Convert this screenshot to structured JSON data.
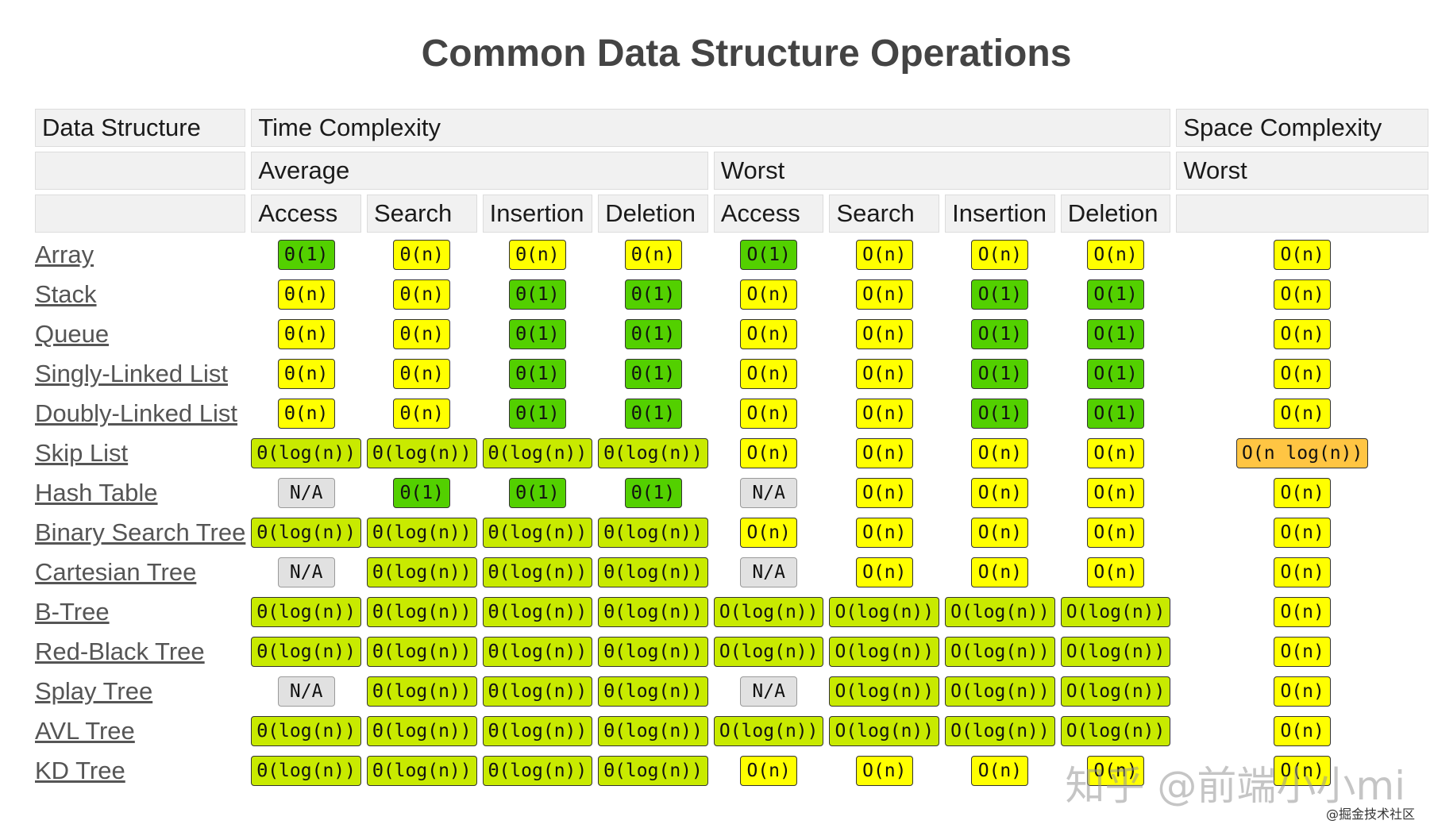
{
  "title": "Common Data Structure Operations",
  "headers": {
    "data_structure": "Data Structure",
    "time_complexity": "Time Complexity",
    "space_complexity": "Space Complexity",
    "average": "Average",
    "worst": "Worst",
    "space_worst": "Worst",
    "ops": [
      "Access",
      "Search",
      "Insertion",
      "Deletion"
    ]
  },
  "rows": [
    {
      "name": "Array",
      "cells": [
        {
          "v": "Θ(1)",
          "c": "good"
        },
        {
          "v": "Θ(n)",
          "c": "fair"
        },
        {
          "v": "Θ(n)",
          "c": "fair"
        },
        {
          "v": "Θ(n)",
          "c": "fair"
        },
        {
          "v": "O(1)",
          "c": "good"
        },
        {
          "v": "O(n)",
          "c": "fair"
        },
        {
          "v": "O(n)",
          "c": "fair"
        },
        {
          "v": "O(n)",
          "c": "fair"
        },
        {
          "v": "O(n)",
          "c": "fair"
        }
      ]
    },
    {
      "name": "Stack",
      "cells": [
        {
          "v": "Θ(n)",
          "c": "fair"
        },
        {
          "v": "Θ(n)",
          "c": "fair"
        },
        {
          "v": "Θ(1)",
          "c": "good"
        },
        {
          "v": "Θ(1)",
          "c": "good"
        },
        {
          "v": "O(n)",
          "c": "fair"
        },
        {
          "v": "O(n)",
          "c": "fair"
        },
        {
          "v": "O(1)",
          "c": "good"
        },
        {
          "v": "O(1)",
          "c": "good"
        },
        {
          "v": "O(n)",
          "c": "fair"
        }
      ]
    },
    {
      "name": "Queue",
      "cells": [
        {
          "v": "Θ(n)",
          "c": "fair"
        },
        {
          "v": "Θ(n)",
          "c": "fair"
        },
        {
          "v": "Θ(1)",
          "c": "good"
        },
        {
          "v": "Θ(1)",
          "c": "good"
        },
        {
          "v": "O(n)",
          "c": "fair"
        },
        {
          "v": "O(n)",
          "c": "fair"
        },
        {
          "v": "O(1)",
          "c": "good"
        },
        {
          "v": "O(1)",
          "c": "good"
        },
        {
          "v": "O(n)",
          "c": "fair"
        }
      ]
    },
    {
      "name": "Singly-Linked List",
      "cells": [
        {
          "v": "Θ(n)",
          "c": "fair"
        },
        {
          "v": "Θ(n)",
          "c": "fair"
        },
        {
          "v": "Θ(1)",
          "c": "good"
        },
        {
          "v": "Θ(1)",
          "c": "good"
        },
        {
          "v": "O(n)",
          "c": "fair"
        },
        {
          "v": "O(n)",
          "c": "fair"
        },
        {
          "v": "O(1)",
          "c": "good"
        },
        {
          "v": "O(1)",
          "c": "good"
        },
        {
          "v": "O(n)",
          "c": "fair"
        }
      ]
    },
    {
      "name": "Doubly-Linked List",
      "cells": [
        {
          "v": "Θ(n)",
          "c": "fair"
        },
        {
          "v": "Θ(n)",
          "c": "fair"
        },
        {
          "v": "Θ(1)",
          "c": "good"
        },
        {
          "v": "Θ(1)",
          "c": "good"
        },
        {
          "v": "O(n)",
          "c": "fair"
        },
        {
          "v": "O(n)",
          "c": "fair"
        },
        {
          "v": "O(1)",
          "c": "good"
        },
        {
          "v": "O(1)",
          "c": "good"
        },
        {
          "v": "O(n)",
          "c": "fair"
        }
      ]
    },
    {
      "name": "Skip List",
      "cells": [
        {
          "v": "Θ(log(n))",
          "c": "ok"
        },
        {
          "v": "Θ(log(n))",
          "c": "ok"
        },
        {
          "v": "Θ(log(n))",
          "c": "ok"
        },
        {
          "v": "Θ(log(n))",
          "c": "ok"
        },
        {
          "v": "O(n)",
          "c": "fair"
        },
        {
          "v": "O(n)",
          "c": "fair"
        },
        {
          "v": "O(n)",
          "c": "fair"
        },
        {
          "v": "O(n)",
          "c": "fair"
        },
        {
          "v": "O(n log(n))",
          "c": "bad"
        }
      ]
    },
    {
      "name": "Hash Table",
      "cells": [
        {
          "v": "N/A",
          "c": "na"
        },
        {
          "v": "Θ(1)",
          "c": "good"
        },
        {
          "v": "Θ(1)",
          "c": "good"
        },
        {
          "v": "Θ(1)",
          "c": "good"
        },
        {
          "v": "N/A",
          "c": "na"
        },
        {
          "v": "O(n)",
          "c": "fair"
        },
        {
          "v": "O(n)",
          "c": "fair"
        },
        {
          "v": "O(n)",
          "c": "fair"
        },
        {
          "v": "O(n)",
          "c": "fair"
        }
      ]
    },
    {
      "name": "Binary Search Tree",
      "cells": [
        {
          "v": "Θ(log(n))",
          "c": "ok"
        },
        {
          "v": "Θ(log(n))",
          "c": "ok"
        },
        {
          "v": "Θ(log(n))",
          "c": "ok"
        },
        {
          "v": "Θ(log(n))",
          "c": "ok"
        },
        {
          "v": "O(n)",
          "c": "fair"
        },
        {
          "v": "O(n)",
          "c": "fair"
        },
        {
          "v": "O(n)",
          "c": "fair"
        },
        {
          "v": "O(n)",
          "c": "fair"
        },
        {
          "v": "O(n)",
          "c": "fair"
        }
      ]
    },
    {
      "name": "Cartesian Tree",
      "cells": [
        {
          "v": "N/A",
          "c": "na"
        },
        {
          "v": "Θ(log(n))",
          "c": "ok"
        },
        {
          "v": "Θ(log(n))",
          "c": "ok"
        },
        {
          "v": "Θ(log(n))",
          "c": "ok"
        },
        {
          "v": "N/A",
          "c": "na"
        },
        {
          "v": "O(n)",
          "c": "fair"
        },
        {
          "v": "O(n)",
          "c": "fair"
        },
        {
          "v": "O(n)",
          "c": "fair"
        },
        {
          "v": "O(n)",
          "c": "fair"
        }
      ]
    },
    {
      "name": "B-Tree",
      "cells": [
        {
          "v": "Θ(log(n))",
          "c": "ok"
        },
        {
          "v": "Θ(log(n))",
          "c": "ok"
        },
        {
          "v": "Θ(log(n))",
          "c": "ok"
        },
        {
          "v": "Θ(log(n))",
          "c": "ok"
        },
        {
          "v": "O(log(n))",
          "c": "ok"
        },
        {
          "v": "O(log(n))",
          "c": "ok"
        },
        {
          "v": "O(log(n))",
          "c": "ok"
        },
        {
          "v": "O(log(n))",
          "c": "ok"
        },
        {
          "v": "O(n)",
          "c": "fair"
        }
      ]
    },
    {
      "name": "Red-Black Tree",
      "cells": [
        {
          "v": "Θ(log(n))",
          "c": "ok"
        },
        {
          "v": "Θ(log(n))",
          "c": "ok"
        },
        {
          "v": "Θ(log(n))",
          "c": "ok"
        },
        {
          "v": "Θ(log(n))",
          "c": "ok"
        },
        {
          "v": "O(log(n))",
          "c": "ok"
        },
        {
          "v": "O(log(n))",
          "c": "ok"
        },
        {
          "v": "O(log(n))",
          "c": "ok"
        },
        {
          "v": "O(log(n))",
          "c": "ok"
        },
        {
          "v": "O(n)",
          "c": "fair"
        }
      ]
    },
    {
      "name": "Splay Tree",
      "cells": [
        {
          "v": "N/A",
          "c": "na"
        },
        {
          "v": "Θ(log(n))",
          "c": "ok"
        },
        {
          "v": "Θ(log(n))",
          "c": "ok"
        },
        {
          "v": "Θ(log(n))",
          "c": "ok"
        },
        {
          "v": "N/A",
          "c": "na"
        },
        {
          "v": "O(log(n))",
          "c": "ok"
        },
        {
          "v": "O(log(n))",
          "c": "ok"
        },
        {
          "v": "O(log(n))",
          "c": "ok"
        },
        {
          "v": "O(n)",
          "c": "fair"
        }
      ]
    },
    {
      "name": "AVL Tree",
      "cells": [
        {
          "v": "Θ(log(n))",
          "c": "ok"
        },
        {
          "v": "Θ(log(n))",
          "c": "ok"
        },
        {
          "v": "Θ(log(n))",
          "c": "ok"
        },
        {
          "v": "Θ(log(n))",
          "c": "ok"
        },
        {
          "v": "O(log(n))",
          "c": "ok"
        },
        {
          "v": "O(log(n))",
          "c": "ok"
        },
        {
          "v": "O(log(n))",
          "c": "ok"
        },
        {
          "v": "O(log(n))",
          "c": "ok"
        },
        {
          "v": "O(n)",
          "c": "fair"
        }
      ]
    },
    {
      "name": "KD Tree",
      "cells": [
        {
          "v": "Θ(log(n))",
          "c": "ok"
        },
        {
          "v": "Θ(log(n))",
          "c": "ok"
        },
        {
          "v": "Θ(log(n))",
          "c": "ok"
        },
        {
          "v": "Θ(log(n))",
          "c": "ok"
        },
        {
          "v": "O(n)",
          "c": "fair"
        },
        {
          "v": "O(n)",
          "c": "fair"
        },
        {
          "v": "O(n)",
          "c": "fair"
        },
        {
          "v": "O(n)",
          "c": "fair"
        },
        {
          "v": "O(n)",
          "c": "fair"
        }
      ]
    }
  ],
  "colors": {
    "good": "#53d000",
    "fair": "#ffff00",
    "ok": "#c8ea00",
    "bad": "#ffc543",
    "na": "#e1e1e1"
  },
  "watermark": "知乎 @前端小小mi",
  "watermark_sub": "@掘金技术社区"
}
